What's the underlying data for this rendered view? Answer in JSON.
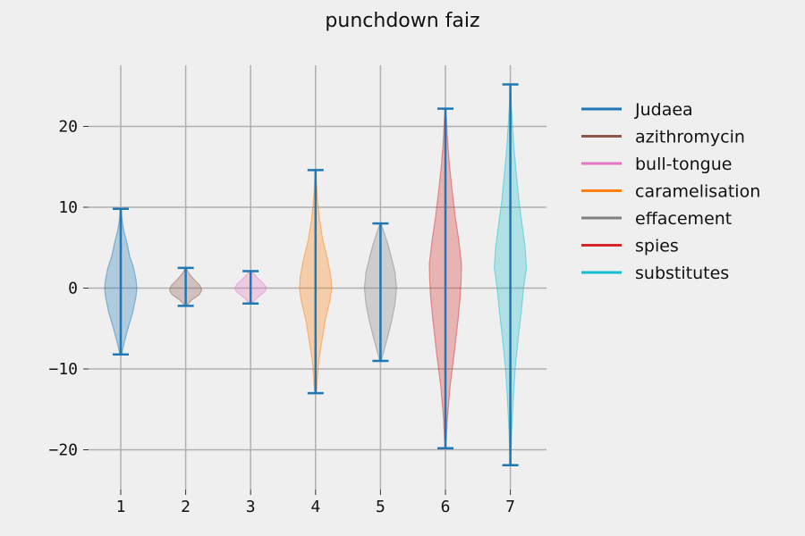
{
  "chart_data": {
    "type": "violin",
    "title": "punchdown faiz",
    "xlabel": "",
    "ylabel": "",
    "categories": [
      "1",
      "2",
      "3",
      "4",
      "5",
      "6",
      "7"
    ],
    "yticks": [
      "20",
      "10",
      "0",
      "−10",
      "−20"
    ],
    "ylim": [
      -25,
      27.5
    ],
    "grid": true,
    "legend_placement": "outside-right",
    "series": [
      {
        "name": "Judaea",
        "position": 1,
        "color": "#1f77b4",
        "min": -8.2,
        "max": 9.8,
        "profile": [
          [
            -8.2,
            0.05
          ],
          [
            -6.5,
            0.25
          ],
          [
            -5,
            0.45
          ],
          [
            -3,
            0.75
          ],
          [
            -1,
            0.95
          ],
          [
            0,
            1.0
          ],
          [
            1,
            0.95
          ],
          [
            2.5,
            0.8
          ],
          [
            4,
            0.55
          ],
          [
            5.5,
            0.4
          ],
          [
            7,
            0.2
          ],
          [
            8.5,
            0.08
          ],
          [
            9.8,
            0.02
          ]
        ]
      },
      {
        "name": "azithromycin",
        "position": 2,
        "color": "#8c564b",
        "min": -2.2,
        "max": 2.5,
        "profile": [
          [
            -2.2,
            0.05
          ],
          [
            -1.5,
            0.35
          ],
          [
            -0.8,
            0.85
          ],
          [
            -0.3,
            1.0
          ],
          [
            0.3,
            0.9
          ],
          [
            1,
            0.55
          ],
          [
            1.8,
            0.2
          ],
          [
            2.5,
            0.03
          ]
        ]
      },
      {
        "name": "bull-tongue",
        "position": 3,
        "color": "#e377c2",
        "min": -1.9,
        "max": 2.1,
        "profile": [
          [
            -1.9,
            0.05
          ],
          [
            -1.2,
            0.4
          ],
          [
            -0.5,
            0.85
          ],
          [
            0,
            1.0
          ],
          [
            0.6,
            0.8
          ],
          [
            1.3,
            0.4
          ],
          [
            2.1,
            0.03
          ]
        ]
      },
      {
        "name": "caramelisation",
        "position": 4,
        "color": "#ff7f0e",
        "min": -13.0,
        "max": 14.6,
        "profile": [
          [
            -13,
            0.05
          ],
          [
            -11,
            0.12
          ],
          [
            -9,
            0.2
          ],
          [
            -6.5,
            0.4
          ],
          [
            -4,
            0.6
          ],
          [
            -1.5,
            0.9
          ],
          [
            0,
            1.0
          ],
          [
            1.5,
            0.95
          ],
          [
            3.5,
            0.75
          ],
          [
            6,
            0.45
          ],
          [
            8.5,
            0.25
          ],
          [
            11,
            0.12
          ],
          [
            13.5,
            0.04
          ],
          [
            14.6,
            0.01
          ]
        ]
      },
      {
        "name": "effacement",
        "position": 5,
        "color": "#7f7f7f",
        "min": -9.0,
        "max": 8.0,
        "profile": [
          [
            -9,
            0.05
          ],
          [
            -7.5,
            0.25
          ],
          [
            -6,
            0.45
          ],
          [
            -4,
            0.7
          ],
          [
            -2,
            0.9
          ],
          [
            0,
            1.0
          ],
          [
            2,
            0.9
          ],
          [
            4,
            0.65
          ],
          [
            5.5,
            0.45
          ],
          [
            7,
            0.2
          ],
          [
            8,
            0.03
          ]
        ]
      },
      {
        "name": "spies",
        "position": 6,
        "color": "#d62728",
        "min": -19.8,
        "max": 22.2,
        "profile": [
          [
            -19.8,
            0.03
          ],
          [
            -16,
            0.12
          ],
          [
            -12,
            0.3
          ],
          [
            -8,
            0.55
          ],
          [
            -4,
            0.78
          ],
          [
            -1,
            0.92
          ],
          [
            1,
            0.98
          ],
          [
            3,
            1.0
          ],
          [
            6,
            0.82
          ],
          [
            9,
            0.6
          ],
          [
            12,
            0.42
          ],
          [
            15,
            0.26
          ],
          [
            18,
            0.14
          ],
          [
            21,
            0.06
          ],
          [
            22.2,
            0.01
          ]
        ]
      },
      {
        "name": "substitutes",
        "position": 7,
        "color": "#17becf",
        "min": -21.9,
        "max": 25.2,
        "profile": [
          [
            -21.9,
            0.02
          ],
          [
            -18,
            0.08
          ],
          [
            -14,
            0.18
          ],
          [
            -10,
            0.3
          ],
          [
            -6,
            0.5
          ],
          [
            -3,
            0.68
          ],
          [
            0,
            0.82
          ],
          [
            2.5,
            1.0
          ],
          [
            5,
            0.92
          ],
          [
            8,
            0.72
          ],
          [
            11,
            0.52
          ],
          [
            14,
            0.38
          ],
          [
            17,
            0.24
          ],
          [
            20,
            0.14
          ],
          [
            23,
            0.05
          ],
          [
            25.2,
            0.01
          ]
        ]
      }
    ]
  }
}
